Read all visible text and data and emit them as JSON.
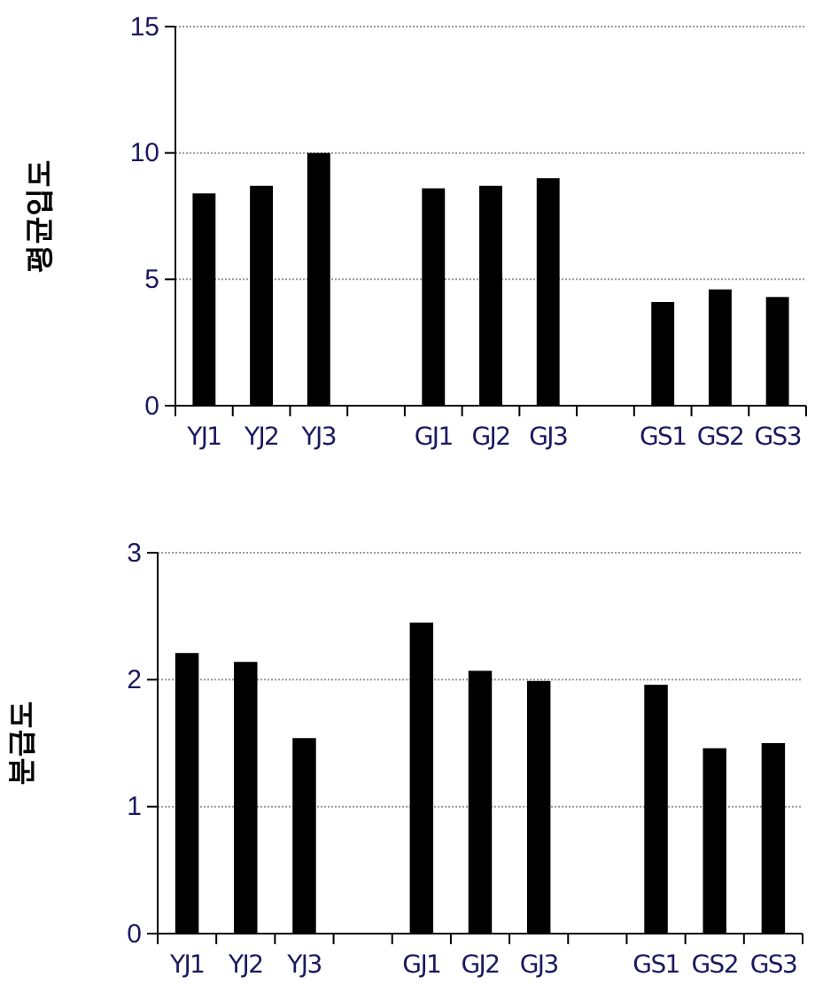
{
  "chart_data": [
    {
      "type": "bar",
      "ylabel": "평균입도",
      "categories": [
        "YJ1",
        "YJ2",
        "YJ3",
        null,
        "GJ1",
        "GJ2",
        "GJ3",
        null,
        "GS1",
        "GS2",
        "GS3"
      ],
      "values": [
        8.4,
        8.7,
        10.0,
        null,
        8.6,
        8.7,
        9.0,
        null,
        4.1,
        4.6,
        4.3
      ],
      "color": "#000000",
      "ylim": [
        0,
        15
      ],
      "yticks": [
        0,
        5,
        10,
        15
      ],
      "grid": "y"
    },
    {
      "type": "bar",
      "ylabel": "분급도",
      "categories": [
        "YJ1",
        "YJ2",
        "YJ3",
        null,
        "GJ1",
        "GJ2",
        "GJ3",
        null,
        "GS1",
        "GS2",
        "GS3"
      ],
      "values": [
        2.21,
        2.14,
        1.54,
        null,
        2.45,
        2.07,
        1.99,
        null,
        1.96,
        1.46,
        1.5
      ],
      "color": "#000000",
      "ylim": [
        0,
        3
      ],
      "yticks": [
        0,
        1,
        2,
        3
      ],
      "grid": "y"
    }
  ]
}
